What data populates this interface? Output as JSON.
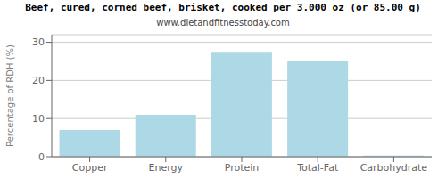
{
  "chart_data": {
    "type": "bar",
    "title": "Beef, cured, corned beef, brisket, cooked per 3.000 oz (or 85.00 g)",
    "subtitle": "www.dietandfitnesstoday.com",
    "categories": [
      "Copper",
      "Energy",
      "Protein",
      "Total-Fat",
      "Carbohydrate"
    ],
    "values": [
      7,
      11,
      27.5,
      25,
      0.3
    ],
    "color": "#add8e6",
    "ylabel": "Percentage of RDH (%)",
    "ylim": [
      0,
      32
    ],
    "yticks": [
      0,
      10,
      20,
      30
    ],
    "grid": true
  }
}
